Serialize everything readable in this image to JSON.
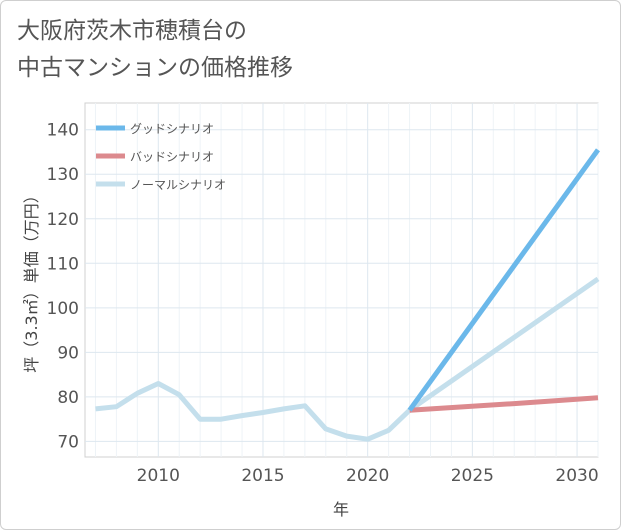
{
  "header": {
    "title_line1": "大阪府茨木市穂積台の",
    "title_line2": "中古マンションの価格推移"
  },
  "chart_data": {
    "type": "line",
    "title": "大阪府茨木市穂積台の中古マンションの価格推移",
    "xlabel": "年",
    "ylabel": "坪（3.3㎡）単価（万円）",
    "xlim": [
      2006.5,
      2031
    ],
    "ylim": [
      66.5,
      146
    ],
    "xticks": [
      2010,
      2015,
      2020,
      2025,
      2030
    ],
    "yticks": [
      70,
      80,
      90,
      100,
      110,
      120,
      130,
      140
    ],
    "grid": true,
    "legend_position": "top-left",
    "series": [
      {
        "name": "グッドシナリオ",
        "color": "#6bb8ea",
        "x": [
          2022,
          2031
        ],
        "values": [
          77.0,
          135.5
        ]
      },
      {
        "name": "バッドシナリオ",
        "color": "#dc8a8e",
        "x": [
          2022,
          2027,
          2031
        ],
        "values": [
          77.0,
          78.5,
          79.8
        ]
      },
      {
        "name": "ノーマルシナリオ",
        "color": "#c4dfec",
        "x": [
          2007,
          2008,
          2009,
          2010,
          2011,
          2012,
          2013,
          2014,
          2015,
          2016,
          2017,
          2018,
          2019,
          2020,
          2021,
          2022,
          2031
        ],
        "values": [
          77.3,
          77.8,
          80.8,
          83.0,
          80.5,
          75.0,
          75.0,
          75.8,
          76.5,
          77.3,
          78.0,
          72.8,
          71.2,
          70.5,
          72.5,
          77.0,
          106.5
        ]
      }
    ]
  }
}
